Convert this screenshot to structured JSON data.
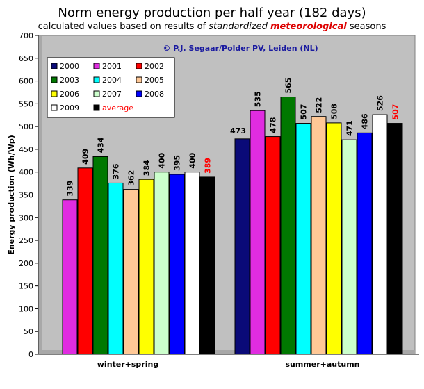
{
  "title": "Norm energy production per half year (182 days)",
  "subtitle": {
    "part1": "calculated values based on results of ",
    "part2": "standardized",
    "part3": " ",
    "part4": "meteorological",
    "part5": " seasons"
  },
  "chart_data": {
    "type": "bar",
    "copyright": "© P.J. Segaar/Polder PV, Leiden (NL)",
    "ylabel": "Energy production (Wh/Wp)",
    "ylim": [
      0,
      700
    ],
    "yticks": [
      0,
      50,
      100,
      150,
      200,
      250,
      300,
      350,
      400,
      450,
      500,
      550,
      600,
      650,
      700
    ],
    "grid": false,
    "legend_position": "top-left",
    "categories": [
      "winter+spring",
      "summer+autumn"
    ],
    "series": [
      {
        "name": "2000",
        "color": "#0a0a78",
        "values": [
          null,
          473
        ]
      },
      {
        "name": "2001",
        "color": "#e02ce0",
        "values": [
          339,
          535
        ]
      },
      {
        "name": "2002",
        "color": "#ff0000",
        "values": [
          409,
          478
        ]
      },
      {
        "name": "2003",
        "color": "#007800",
        "values": [
          434,
          565
        ]
      },
      {
        "name": "2004",
        "color": "#00ffff",
        "values": [
          376,
          507
        ]
      },
      {
        "name": "2005",
        "color": "#ffc896",
        "values": [
          362,
          522
        ]
      },
      {
        "name": "2006",
        "color": "#ffff00",
        "values": [
          384,
          508
        ]
      },
      {
        "name": "2007",
        "color": "#ccffcc",
        "values": [
          400,
          471
        ]
      },
      {
        "name": "2008",
        "color": "#0000ff",
        "values": [
          395,
          486
        ]
      },
      {
        "name": "2009",
        "color": "#ffffff",
        "values": [
          400,
          526
        ]
      },
      {
        "name": "average",
        "color": "#000000",
        "label_color": "#ff0000",
        "values": [
          389,
          507
        ]
      }
    ]
  }
}
